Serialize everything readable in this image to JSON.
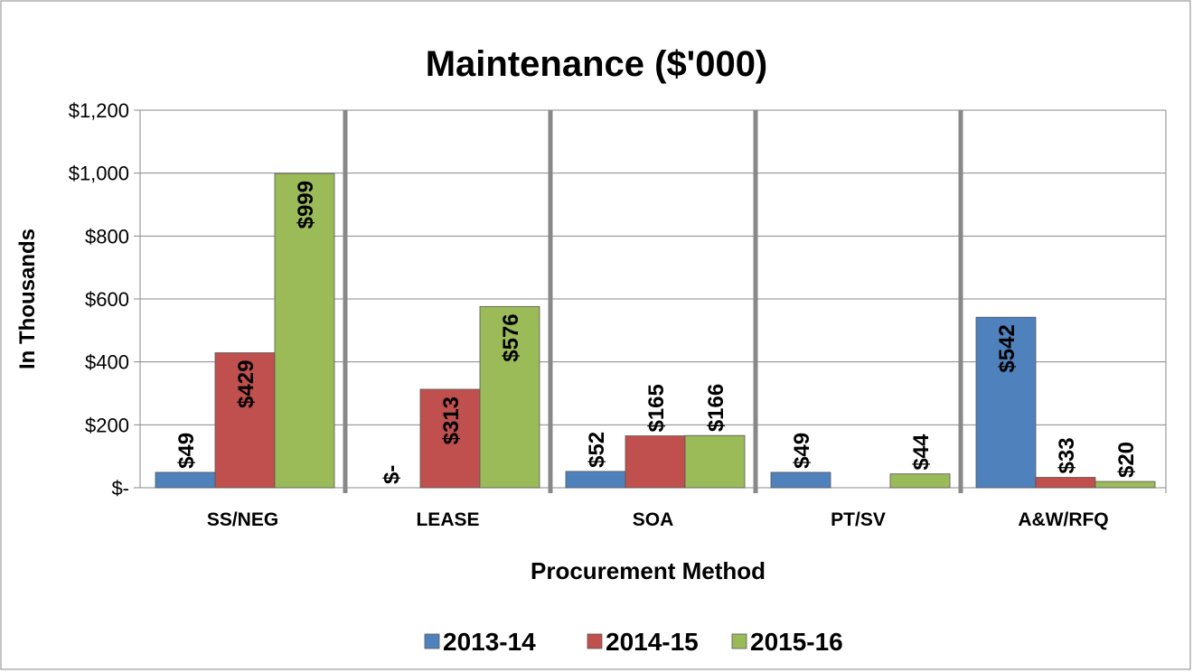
{
  "chart_data": {
    "type": "bar",
    "title": "Maintenance ($'000)",
    "y_axis_label": "In Thousands",
    "x_axis_label": "Procurement Method",
    "categories": [
      "SS/NEG",
      "LEASE",
      "SOA",
      "PT/SV",
      "A&W/RFQ"
    ],
    "series": [
      {
        "name": "2013-14",
        "color": "#4f81bd",
        "values": [
          49,
          0,
          52,
          49,
          542
        ],
        "value_labels": [
          "$49",
          "$-",
          "$52",
          "$49",
          "$542"
        ]
      },
      {
        "name": "2014-15",
        "color": "#c0504d",
        "values": [
          429,
          313,
          165,
          null,
          33
        ],
        "value_labels": [
          "$429",
          "$313",
          "$165",
          null,
          "$33"
        ]
      },
      {
        "name": "2015-16",
        "color": "#9bbb59",
        "values": [
          999,
          576,
          166,
          44,
          20
        ],
        "value_labels": [
          "$999",
          "$576",
          "$166",
          "$44",
          "$20"
        ]
      }
    ],
    "ylim": [
      0,
      1200
    ],
    "yticks": [
      {
        "value": 0,
        "label": "$-"
      },
      {
        "value": 200,
        "label": "$200"
      },
      {
        "value": 400,
        "label": "$400"
      },
      {
        "value": 600,
        "label": "$600"
      },
      {
        "value": 800,
        "label": "$800"
      },
      {
        "value": 1000,
        "label": "$1,000"
      },
      {
        "value": 1200,
        "label": "$1,200"
      }
    ],
    "grid": true,
    "legend": "bottom"
  }
}
